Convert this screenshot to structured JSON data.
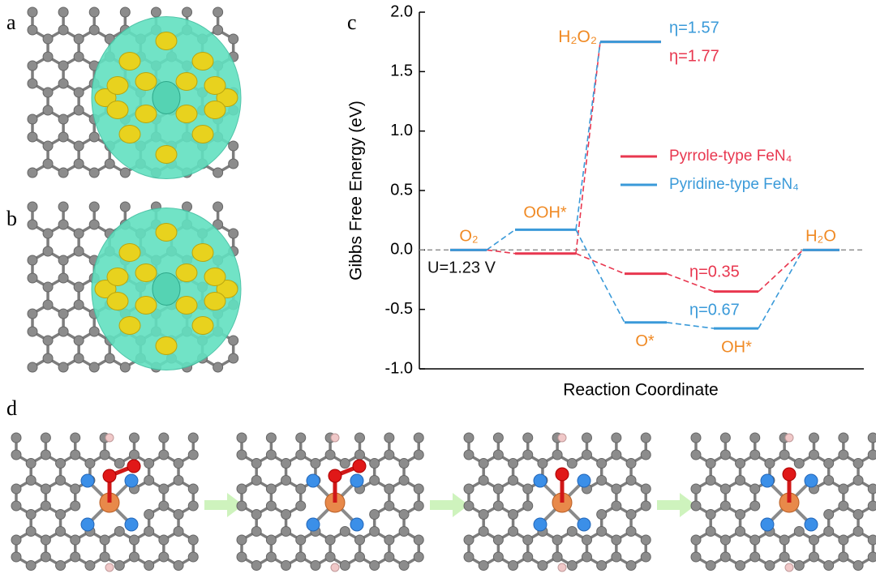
{
  "panel_labels": [
    "a",
    "b",
    "d"
  ],
  "chart_data": {
    "type": "energy-diagram",
    "panel_label": "c",
    "y_label": "Gibbs Free Energy (eV)",
    "x_label": "Reaction Coordinate",
    "ylim": [
      -1.0,
      2.0
    ],
    "yticks": [
      {
        "value": -1.0,
        "label": "-1.0"
      },
      {
        "value": -0.5,
        "label": "-0.5"
      },
      {
        "value": 0,
        "label": "0.0"
      },
      {
        "value": 0.5,
        "label": "0.5"
      },
      {
        "value": 1.0,
        "label": "1.0"
      },
      {
        "value": 1.5,
        "label": "1.5"
      },
      {
        "value": 2.0,
        "label": "2.0"
      }
    ],
    "reference_line": 0,
    "steps": [
      "O₂",
      "OOH*",
      "O*",
      "OH*",
      "H₂O"
    ],
    "branch_step": "H₂O₂",
    "label_color": "#f08a24",
    "series": [
      {
        "name": "Pyrrole-type FeN₄",
        "color": "#e8374f",
        "values": [
          0,
          -0.03,
          -0.2,
          -0.35,
          0
        ],
        "branch_value": 1.75
      },
      {
        "name": "Pyridine-type FeN₄",
        "color": "#3a9ad9",
        "values": [
          0,
          0.17,
          -0.61,
          -0.66,
          0
        ],
        "branch_value": 1.75
      }
    ],
    "annotations": [
      {
        "text": "U=1.23 V",
        "color": "#111111"
      },
      {
        "text": "η=1.57",
        "color": "#3a9ad9"
      },
      {
        "text": "η=1.77",
        "color": "#e8374f"
      },
      {
        "text": "η=0.35",
        "color": "#e8374f"
      },
      {
        "text": "η=0.67",
        "color": "#3a9ad9"
      }
    ]
  }
}
